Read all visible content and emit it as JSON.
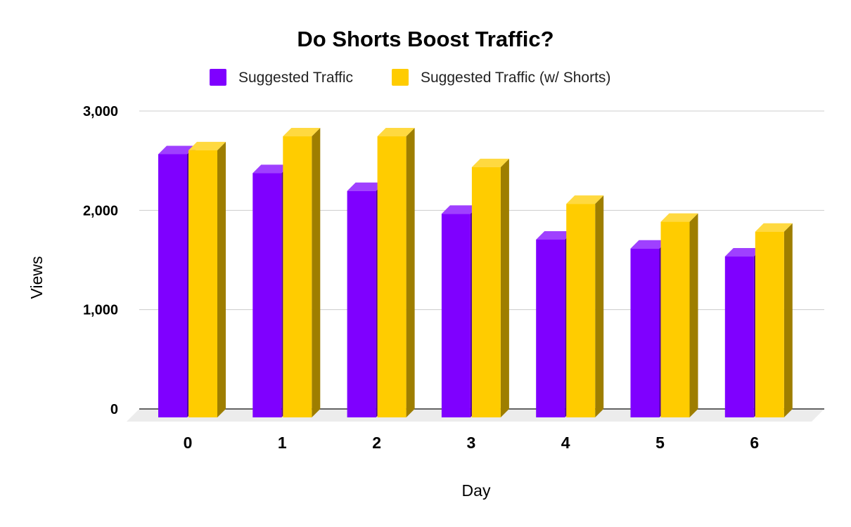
{
  "chart_data": {
    "type": "bar",
    "title": "Do Shorts Boost Traffic?",
    "xlabel": "Day",
    "ylabel": "Views",
    "categories": [
      "0",
      "1",
      "2",
      "3",
      "4",
      "5",
      "6"
    ],
    "series": [
      {
        "name": "Suggested Traffic",
        "color": "#7f00ff",
        "values": [
          2650,
          2460,
          2280,
          2050,
          1790,
          1700,
          1620
        ]
      },
      {
        "name": "Suggested Traffic (w/ Shorts)",
        "color": "#ffcc00",
        "values": [
          2690,
          2830,
          2830,
          2520,
          2150,
          1970,
          1870
        ]
      }
    ],
    "ylim": [
      0,
      3000
    ],
    "yticks": [
      0,
      1000,
      2000,
      3000
    ],
    "ytick_labels": [
      "0",
      "1,000",
      "2,000",
      "3,000"
    ],
    "grid": true,
    "legend_position": "top",
    "style": "3d-bar"
  }
}
